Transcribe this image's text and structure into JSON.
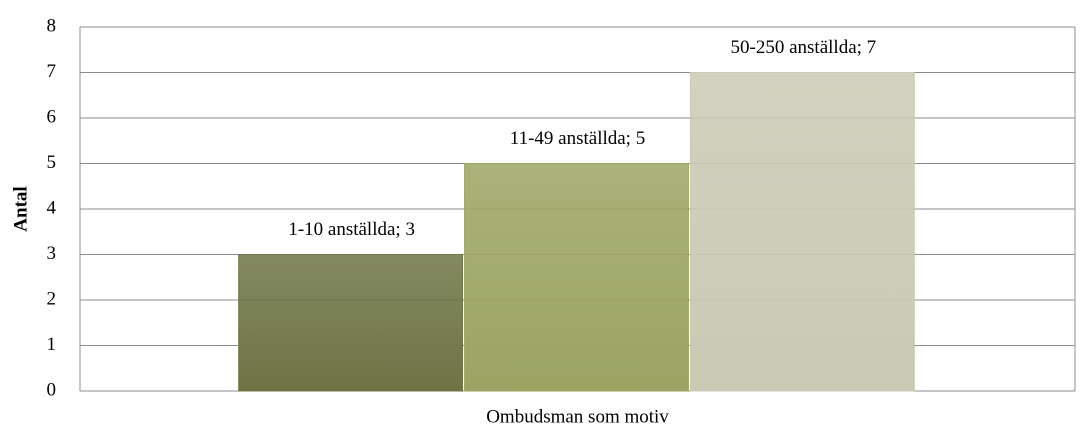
{
  "chart_data": {
    "type": "bar",
    "y_label": "Antal",
    "categories": [
      "Ombudsman som motiv"
    ],
    "series": [
      {
        "color": "#6e7445",
        "values": [
          3
        ],
        "value_labels": [
          "1-10 anställda; 3"
        ]
      },
      {
        "color": "#9ba463",
        "values": [
          5
        ],
        "value_labels": [
          "11-49 anställda; 5"
        ]
      },
      {
        "color": "#c9cab4",
        "values": [
          7
        ],
        "value_labels": [
          "50-250 anställda; 7"
        ]
      }
    ],
    "ylim": [
      0,
      8
    ],
    "yticks": [
      0,
      1,
      2,
      3,
      4,
      5,
      6,
      7,
      8
    ],
    "grid": true
  }
}
